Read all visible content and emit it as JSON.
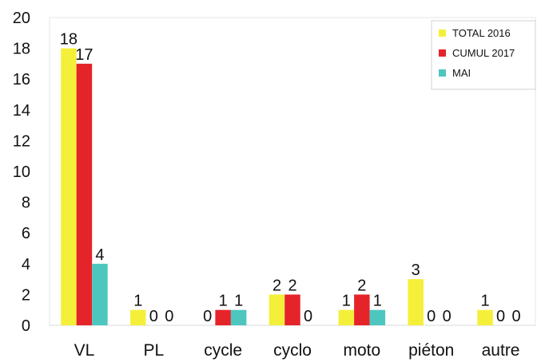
{
  "chart_data": {
    "type": "bar",
    "categories": [
      "VL",
      "PL",
      "cycle",
      "cyclo",
      "moto",
      "piéton",
      "autre"
    ],
    "series": [
      {
        "name": "TOTAL 2016",
        "color": "#f4f03a",
        "values": [
          18,
          1,
          0,
          2,
          1,
          3,
          1
        ]
      },
      {
        "name": "CUMUL 2017",
        "color": "#e5242a",
        "values": [
          17,
          0,
          1,
          2,
          2,
          0,
          0
        ]
      },
      {
        "name": "MAI",
        "color": "#4ec6c0",
        "values": [
          4,
          0,
          1,
          0,
          1,
          0,
          0
        ]
      }
    ],
    "ylim": [
      0,
      20
    ],
    "yticks": [
      0,
      2,
      4,
      6,
      8,
      10,
      12,
      14,
      16,
      18,
      20
    ],
    "grid": false,
    "legend": "top-right",
    "data_labels": true
  }
}
